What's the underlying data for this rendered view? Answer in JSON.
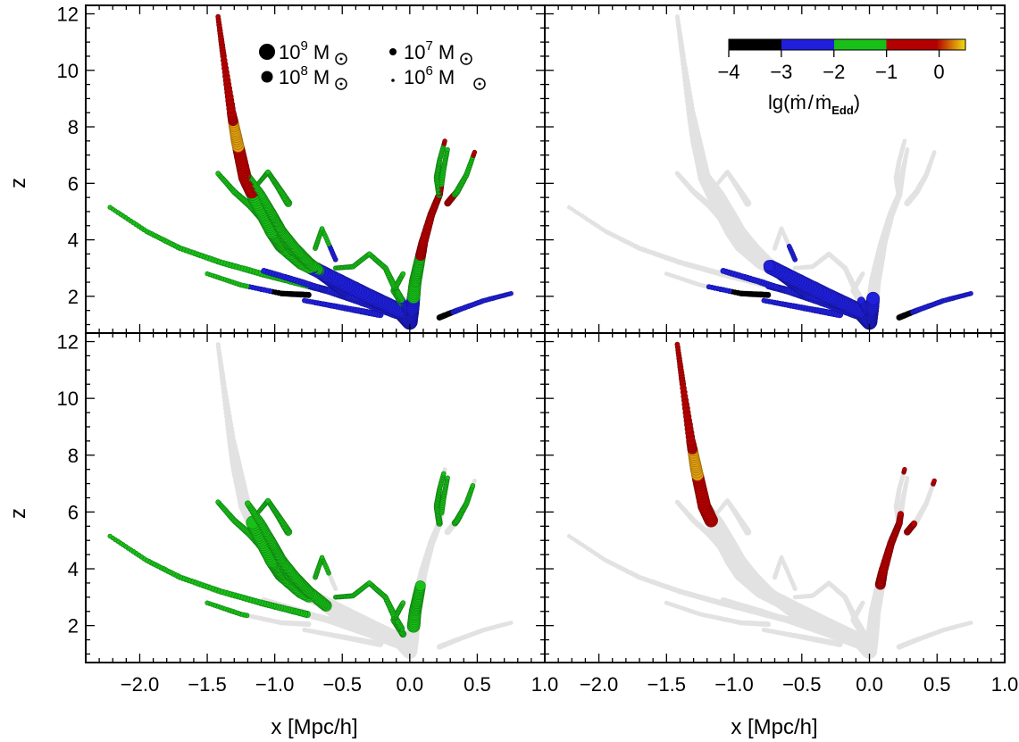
{
  "chart_data": {
    "type": "scatter",
    "xlabel": "x [Mpc/h]",
    "ylabel": "z",
    "xlim": [
      -2.4,
      1.0
    ],
    "ylim": [
      0.7,
      12.3
    ],
    "x_ticks": [
      "-2.0",
      "-1.5",
      "-1.0",
      "-0.5",
      "0.0",
      "0.5",
      "1.0"
    ],
    "y_ticks": [
      "2",
      "4",
      "6",
      "8",
      "10",
      "12"
    ],
    "size_legend": [
      {
        "label": "10",
        "exp": "9",
        "unit": "M",
        "mass_log": 9
      },
      {
        "label": "10",
        "exp": "8",
        "unit": "M",
        "mass_log": 8
      },
      {
        "label": "10",
        "exp": "7",
        "unit": "M",
        "mass_log": 7
      },
      {
        "label": "10",
        "exp": "6",
        "unit": "M",
        "mass_log": 6
      }
    ],
    "colorbar": {
      "label_main": "lg(",
      "label_mdot": "ṁ",
      "label_slash": "/",
      "label_sub": "Edd",
      "label_close": ")",
      "range": [
        -4,
        0.5
      ],
      "ticks": [
        "-4",
        "-3",
        "-2",
        "-1",
        "0"
      ],
      "colors": [
        "#000000",
        "#1f1fdc",
        "#18c018",
        "#b40000",
        "#f0e010"
      ]
    },
    "panels": [
      {
        "id": "all",
        "filter": [
          -9,
          9
        ]
      },
      {
        "id": "low",
        "filter": [
          -9,
          -2
        ]
      },
      {
        "id": "mid",
        "filter": [
          -2,
          -1
        ]
      },
      {
        "id": "high",
        "filter": [
          -1,
          9
        ]
      }
    ],
    "branches": [
      {
        "pts": [
          [
            -1.42,
            11.9,
            -0.6,
            6.6
          ],
          [
            -1.38,
            10.5,
            -0.7,
            6.9
          ],
          [
            -1.32,
            8.5,
            -0.1,
            7.6
          ],
          [
            -1.28,
            7.5,
            0.2,
            8.2
          ],
          [
            -1.22,
            6.2,
            -0.8,
            8.5
          ],
          [
            -1.12,
            5.2,
            -1.2,
            8.6
          ],
          [
            -1.02,
            4.3,
            -1.4,
            8.7
          ],
          [
            -0.95,
            3.8,
            -1.5,
            8.7
          ],
          [
            -0.8,
            3.2,
            -1.9,
            8.8
          ],
          [
            -0.55,
            2.6,
            -2.3,
            8.8
          ],
          [
            -0.3,
            2.0,
            -2.6,
            8.9
          ],
          [
            -0.08,
            1.5,
            -2.8,
            8.9
          ],
          [
            0.0,
            1.1,
            -2.9,
            9.1
          ]
        ]
      },
      {
        "pts": [
          [
            -1.42,
            6.35,
            -1.3,
            6.6
          ],
          [
            -1.3,
            5.7,
            -1.6,
            6.8
          ],
          [
            -1.18,
            5.2,
            -1.5,
            7.0
          ],
          [
            -1.08,
            4.7,
            -1.6,
            7.4
          ],
          [
            -0.95,
            4.1,
            -1.5,
            7.7
          ],
          [
            -0.88,
            3.6,
            -1.6,
            7.8
          ],
          [
            -0.72,
            3.0,
            -2.1,
            8.0
          ],
          [
            -0.6,
            2.6,
            -2.2,
            8.2
          ],
          [
            -0.48,
            2.2,
            -2.5,
            8.5
          ]
        ]
      },
      {
        "pts": [
          [
            -1.2,
            6.3,
            -1.4,
            6.8
          ],
          [
            -1.1,
            5.6,
            -1.6,
            7.4
          ],
          [
            -1.02,
            4.9,
            -1.6,
            7.8
          ],
          [
            -0.95,
            4.3,
            -1.5,
            7.9
          ],
          [
            -0.85,
            3.7,
            -1.6,
            8.0
          ],
          [
            -0.75,
            3.2,
            -1.7,
            8.1
          ],
          [
            -0.62,
            2.7,
            -1.6,
            8.1
          ]
        ]
      },
      {
        "pts": [
          [
            -1.12,
            6.0,
            -1.2,
            6.4
          ],
          [
            -1.05,
            6.4,
            -1.5,
            6.6
          ],
          [
            -0.98,
            5.9,
            -1.5,
            6.8
          ],
          [
            -0.9,
            5.3,
            -1.4,
            7.2
          ]
        ]
      },
      {
        "pts": [
          [
            -2.22,
            5.15,
            -1.2,
            6.5
          ],
          [
            -1.95,
            4.3,
            -1.6,
            6.6
          ],
          [
            -1.7,
            3.7,
            -1.6,
            6.7
          ],
          [
            -1.4,
            3.2,
            -1.5,
            6.8
          ],
          [
            -1.1,
            2.8,
            -1.6,
            6.9
          ],
          [
            -0.85,
            2.5,
            -1.7,
            7.0
          ],
          [
            -0.6,
            2.2,
            -2.5,
            7.2
          ],
          [
            -0.35,
            1.9,
            -2.6,
            7.4
          ],
          [
            -0.15,
            1.55,
            -2.7,
            7.6
          ]
        ]
      },
      {
        "pts": [
          [
            -1.08,
            2.9,
            -2.5,
            6.8
          ],
          [
            -0.8,
            2.5,
            -2.6,
            6.9
          ],
          [
            -0.55,
            2.1,
            -2.7,
            7.0
          ],
          [
            -0.3,
            1.7,
            -2.8,
            7.2
          ],
          [
            -0.1,
            1.35,
            -2.8,
            7.4
          ]
        ]
      },
      {
        "pts": [
          [
            -0.78,
            1.85,
            -2.6,
            6.6
          ],
          [
            -0.5,
            1.6,
            -2.8,
            6.8
          ],
          [
            -0.22,
            1.35,
            -2.8,
            7.0
          ]
        ]
      },
      {
        "pts": [
          [
            -0.7,
            3.7,
            -1.5,
            6.6
          ],
          [
            -0.65,
            4.4,
            -1.6,
            6.5
          ],
          [
            -0.55,
            3.3,
            -2.4,
            6.6
          ]
        ]
      },
      {
        "pts": [
          [
            -1.5,
            2.8,
            -1.6,
            6.5
          ],
          [
            -1.25,
            2.4,
            -1.7,
            6.6
          ],
          [
            -0.95,
            2.1,
            -3.5,
            6.7
          ],
          [
            -0.75,
            2.05,
            -3.6,
            6.8
          ]
        ]
      },
      {
        "pts": [
          [
            -0.55,
            3.0,
            -1.6,
            6.5
          ],
          [
            -0.42,
            3.05,
            -1.5,
            6.6
          ],
          [
            -0.3,
            3.5,
            -1.5,
            6.6
          ],
          [
            -0.18,
            3.0,
            -1.5,
            6.7
          ],
          [
            -0.1,
            2.2,
            -1.6,
            7.0
          ],
          [
            -0.02,
            1.5,
            -2.5,
            7.4
          ]
        ]
      },
      {
        "pts": [
          [
            0.28,
            7.2,
            -1.4,
            6.5
          ],
          [
            0.25,
            6.5,
            -1.3,
            6.7
          ],
          [
            0.22,
            5.6,
            -0.8,
            7.0
          ],
          [
            0.16,
            4.9,
            -0.7,
            7.2
          ],
          [
            0.1,
            3.9,
            -0.6,
            7.6
          ],
          [
            0.07,
            3.2,
            -1.2,
            8.0
          ],
          [
            0.04,
            2.5,
            -1.3,
            8.3
          ],
          [
            0.02,
            1.6,
            -2.5,
            8.6
          ],
          [
            0.0,
            1.1,
            -2.9,
            9.0
          ]
        ]
      },
      {
        "pts": [
          [
            0.26,
            7.5,
            -0.9,
            6.5
          ],
          [
            0.22,
            6.8,
            -1.4,
            6.6
          ],
          [
            0.2,
            6.2,
            -1.5,
            6.8
          ],
          [
            0.22,
            5.6,
            -1.5,
            6.9
          ]
        ]
      },
      {
        "pts": [
          [
            0.48,
            7.1,
            -0.9,
            6.5
          ],
          [
            0.42,
            6.3,
            -1.5,
            6.7
          ],
          [
            0.35,
            5.7,
            -1.1,
            6.9
          ],
          [
            0.28,
            5.3,
            -0.7,
            7.0
          ]
        ]
      },
      {
        "pts": [
          [
            -0.05,
            2.8,
            -1.5,
            6.6
          ],
          [
            -0.12,
            2.2,
            -1.6,
            6.8
          ],
          [
            -0.05,
            1.7,
            -1.7,
            7.0
          ]
        ]
      },
      {
        "pts": [
          [
            0.22,
            1.25,
            -3.8,
            6.8
          ],
          [
            0.35,
            1.5,
            -2.7,
            6.7
          ],
          [
            0.55,
            1.85,
            -2.6,
            6.6
          ],
          [
            0.75,
            2.1,
            -2.8,
            6.5
          ]
        ]
      }
    ]
  }
}
